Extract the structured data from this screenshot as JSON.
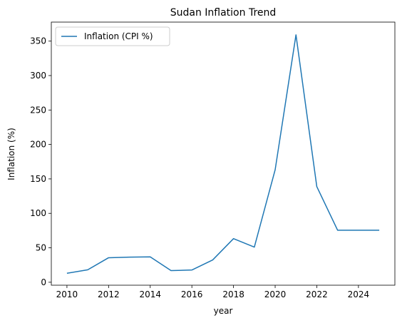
{
  "chart_data": {
    "type": "line",
    "title": "Sudan Inflation Trend",
    "xlabel": "year",
    "ylabel": "Inflation (%)",
    "xlim": [
      2009.25,
      2025.75
    ],
    "ylim": [
      -4.3,
      377.6
    ],
    "xticks": [
      2010,
      2012,
      2014,
      2016,
      2018,
      2020,
      2022,
      2024
    ],
    "yticks": [
      0,
      50,
      100,
      150,
      200,
      250,
      300,
      350
    ],
    "grid": false,
    "legend_position": "top-left",
    "series": [
      {
        "name": "Inflation (CPI %)",
        "color": "#1f77b4",
        "x": [
          2010,
          2011,
          2012,
          2013,
          2014,
          2015,
          2016,
          2017,
          2018,
          2019,
          2020,
          2021,
          2022,
          2023,
          2024,
          2025
        ],
        "y": [
          13.0,
          18.1,
          35.6,
          36.5,
          36.9,
          16.9,
          17.8,
          32.4,
          63.3,
          51.0,
          163.3,
          359.1,
          138.8,
          75.5,
          75.5,
          75.5
        ]
      }
    ]
  }
}
